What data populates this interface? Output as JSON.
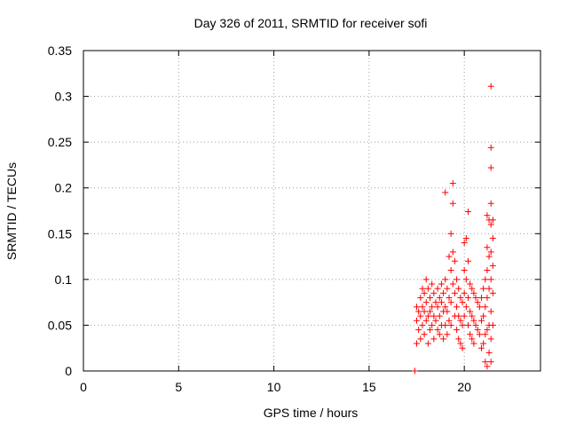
{
  "chart_data": {
    "type": "scatter",
    "title": "Day 326 of 2011, SRMTID for receiver sofi",
    "xlabel": "GPS time / hours",
    "ylabel": "SRMTID / TECUs",
    "xlim": [
      0,
      24
    ],
    "ylim": [
      0,
      0.35
    ],
    "xticks": [
      0,
      5,
      10,
      15,
      20
    ],
    "yticks": [
      0,
      0.05,
      0.1,
      0.15,
      0.2,
      0.25,
      0.3,
      0.35
    ],
    "ytick_labels": [
      "0",
      "0.05",
      "0.1",
      "0.15",
      "0.2",
      "0.25",
      "0.3",
      "0.35"
    ],
    "grid": true,
    "marker": "plus",
    "color": "#ff0000",
    "series": [
      {
        "name": "SRMTID",
        "points": [
          [
            17.4,
            0.0
          ],
          [
            17.5,
            0.07
          ],
          [
            17.5,
            0.055
          ],
          [
            17.5,
            0.03
          ],
          [
            17.6,
            0.065
          ],
          [
            17.6,
            0.045
          ],
          [
            17.7,
            0.08
          ],
          [
            17.7,
            0.06
          ],
          [
            17.7,
            0.035
          ],
          [
            17.8,
            0.09
          ],
          [
            17.8,
            0.07
          ],
          [
            17.8,
            0.05
          ],
          [
            17.9,
            0.085
          ],
          [
            17.9,
            0.065
          ],
          [
            17.9,
            0.04
          ],
          [
            18.0,
            0.1
          ],
          [
            18.0,
            0.075
          ],
          [
            18.0,
            0.055
          ],
          [
            18.1,
            0.09
          ],
          [
            18.1,
            0.06
          ],
          [
            18.1,
            0.03
          ],
          [
            18.2,
            0.08
          ],
          [
            18.2,
            0.065
          ],
          [
            18.2,
            0.045
          ],
          [
            18.3,
            0.095
          ],
          [
            18.3,
            0.07
          ],
          [
            18.3,
            0.05
          ],
          [
            18.4,
            0.085
          ],
          [
            18.4,
            0.06
          ],
          [
            18.4,
            0.035
          ],
          [
            18.5,
            0.075
          ],
          [
            18.5,
            0.055
          ],
          [
            18.6,
            0.09
          ],
          [
            18.6,
            0.07
          ],
          [
            18.6,
            0.045
          ],
          [
            18.7,
            0.08
          ],
          [
            18.7,
            0.06
          ],
          [
            18.7,
            0.04
          ],
          [
            18.8,
            0.095
          ],
          [
            18.8,
            0.075
          ],
          [
            18.8,
            0.05
          ],
          [
            18.9,
            0.085
          ],
          [
            18.9,
            0.065
          ],
          [
            18.9,
            0.035
          ],
          [
            19.0,
            0.195
          ],
          [
            19.0,
            0.1
          ],
          [
            19.0,
            0.07
          ],
          [
            19.0,
            0.05
          ],
          [
            19.1,
            0.09
          ],
          [
            19.1,
            0.065
          ],
          [
            19.1,
            0.04
          ],
          [
            19.2,
            0.125
          ],
          [
            19.2,
            0.08
          ],
          [
            19.2,
            0.055
          ],
          [
            19.3,
            0.15
          ],
          [
            19.3,
            0.11
          ],
          [
            19.3,
            0.075
          ],
          [
            19.3,
            0.05
          ],
          [
            19.4,
            0.205
          ],
          [
            19.4,
            0.183
          ],
          [
            19.4,
            0.13
          ],
          [
            19.4,
            0.095
          ],
          [
            19.5,
            0.12
          ],
          [
            19.5,
            0.085
          ],
          [
            19.5,
            0.06
          ],
          [
            19.6,
            0.1
          ],
          [
            19.6,
            0.07
          ],
          [
            19.6,
            0.045
          ],
          [
            19.7,
            0.09
          ],
          [
            19.7,
            0.06
          ],
          [
            19.7,
            0.035
          ],
          [
            19.8,
            0.08
          ],
          [
            19.8,
            0.055
          ],
          [
            19.8,
            0.03
          ],
          [
            19.9,
            0.075
          ],
          [
            19.9,
            0.05
          ],
          [
            19.9,
            0.025
          ],
          [
            20.0,
            0.14
          ],
          [
            20.0,
            0.11
          ],
          [
            20.0,
            0.085
          ],
          [
            20.0,
            0.06
          ],
          [
            20.1,
            0.145
          ],
          [
            20.1,
            0.1
          ],
          [
            20.1,
            0.07
          ],
          [
            20.2,
            0.174
          ],
          [
            20.2,
            0.12
          ],
          [
            20.2,
            0.08
          ],
          [
            20.2,
            0.05
          ],
          [
            20.3,
            0.095
          ],
          [
            20.3,
            0.065
          ],
          [
            20.3,
            0.04
          ],
          [
            20.4,
            0.09
          ],
          [
            20.4,
            0.06
          ],
          [
            20.4,
            0.035
          ],
          [
            20.5,
            0.085
          ],
          [
            20.5,
            0.055
          ],
          [
            20.5,
            0.03
          ],
          [
            20.6,
            0.08
          ],
          [
            20.6,
            0.05
          ],
          [
            20.7,
            0.075
          ],
          [
            20.7,
            0.045
          ],
          [
            20.8,
            0.07
          ],
          [
            20.8,
            0.04
          ],
          [
            20.9,
            0.08
          ],
          [
            20.9,
            0.055
          ],
          [
            20.9,
            0.025
          ],
          [
            21.0,
            0.09
          ],
          [
            21.0,
            0.06
          ],
          [
            21.0,
            0.03
          ],
          [
            21.1,
            0.1
          ],
          [
            21.1,
            0.07
          ],
          [
            21.1,
            0.04
          ],
          [
            21.1,
            0.01
          ],
          [
            21.2,
            0.17
          ],
          [
            21.2,
            0.135
          ],
          [
            21.2,
            0.11
          ],
          [
            21.2,
            0.08
          ],
          [
            21.2,
            0.045
          ],
          [
            21.2,
            0.005
          ],
          [
            21.3,
            0.165
          ],
          [
            21.3,
            0.125
          ],
          [
            21.3,
            0.09
          ],
          [
            21.3,
            0.05
          ],
          [
            21.3,
            0.02
          ],
          [
            21.4,
            0.311
          ],
          [
            21.4,
            0.244
          ],
          [
            21.4,
            0.222
          ],
          [
            21.4,
            0.183
          ],
          [
            21.4,
            0.16
          ],
          [
            21.4,
            0.13
          ],
          [
            21.4,
            0.1
          ],
          [
            21.4,
            0.065
          ],
          [
            21.4,
            0.035
          ],
          [
            21.4,
            0.01
          ],
          [
            21.5,
            0.165
          ],
          [
            21.5,
            0.145
          ],
          [
            21.5,
            0.115
          ],
          [
            21.5,
            0.085
          ],
          [
            21.5,
            0.05
          ]
        ]
      }
    ]
  }
}
